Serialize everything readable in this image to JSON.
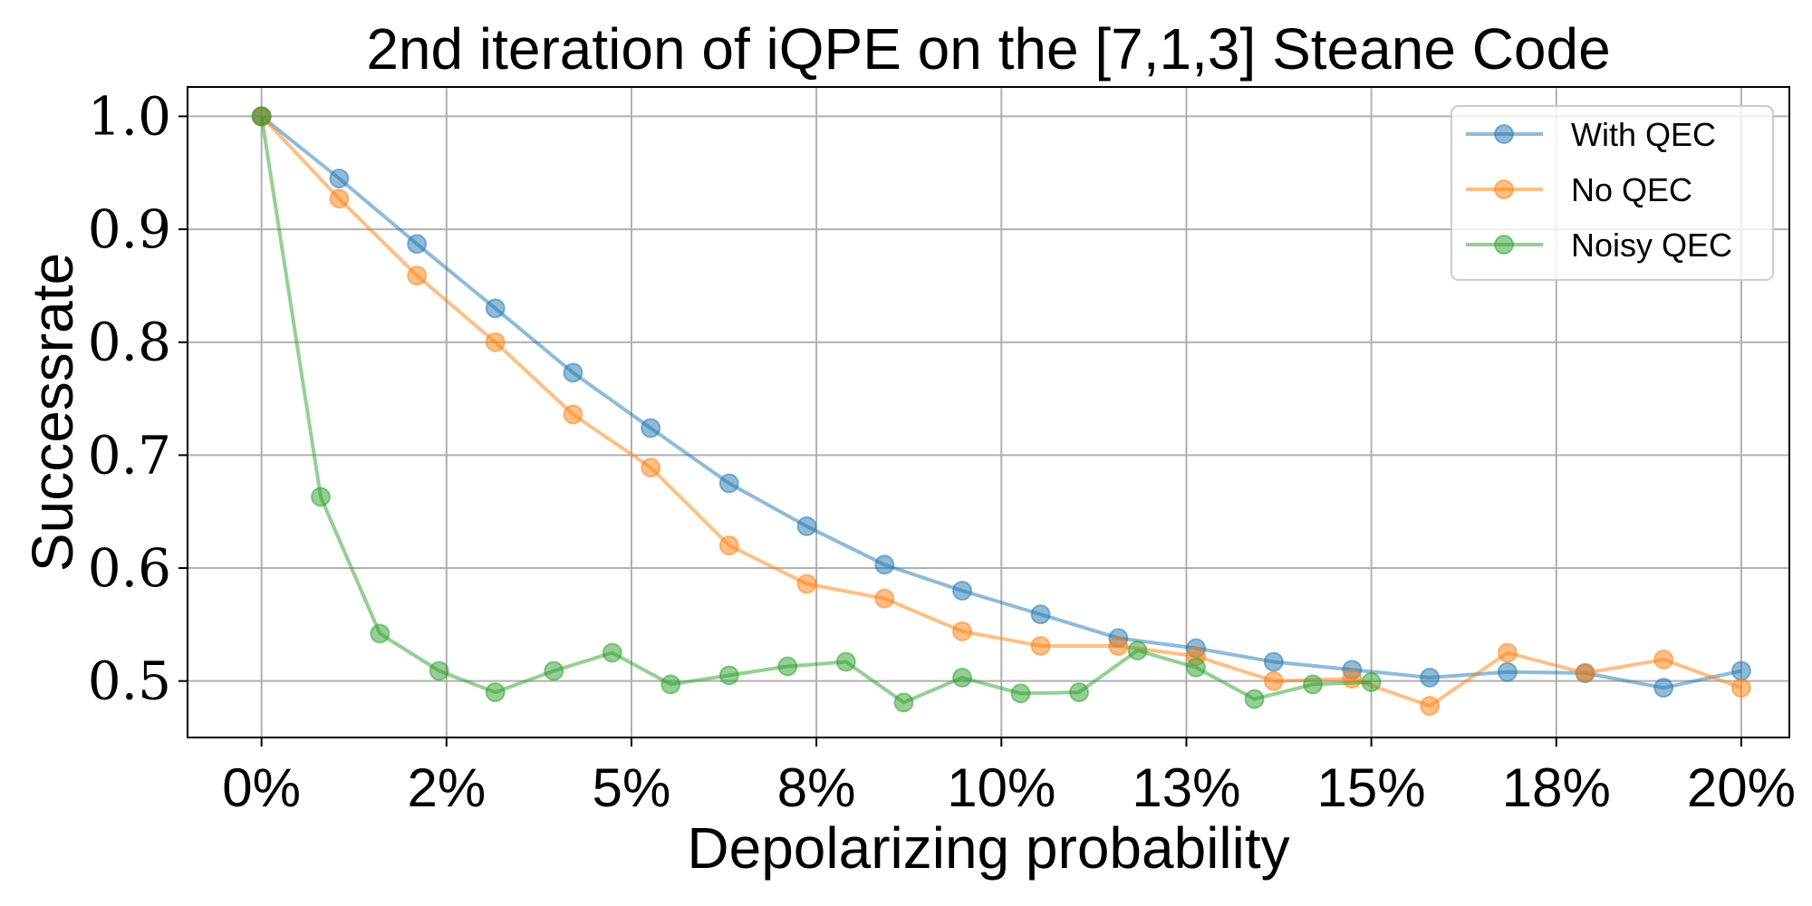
{
  "chart_data": {
    "type": "line",
    "title": "2nd iteration of iQPE on the [7,1,3] Steane Code",
    "xlabel": "Depolarizing probability",
    "ylabel": "Successrate",
    "xlim": [
      -0.01,
      0.2065
    ],
    "ylim": [
      0.45,
      1.026
    ],
    "xticks": [
      0,
      0.025,
      0.05,
      0.075,
      0.1,
      0.125,
      0.15,
      0.175,
      0.2
    ],
    "xtick_labels": [
      "0%",
      "2%",
      "5%",
      "8%",
      "10%",
      "13%",
      "15%",
      "18%",
      "20%"
    ],
    "yticks": [
      0.5,
      0.6,
      0.7,
      0.8,
      0.9,
      1.0
    ],
    "ytick_labels": [
      "0.5",
      "0.6",
      "0.7",
      "0.8",
      "0.9",
      "1.0"
    ],
    "grid": true,
    "legend_position": "top-right",
    "series": [
      {
        "name": "With QEC",
        "color": "#1f77b4",
        "x": [
          0,
          0.0105,
          0.021,
          0.0316,
          0.0421,
          0.0526,
          0.0632,
          0.0737,
          0.0842,
          0.0947,
          0.1053,
          0.1158,
          0.1263,
          0.1368,
          0.1474,
          0.1579,
          0.1684,
          0.1789,
          0.1895,
          0.2
        ],
        "y": [
          1.0,
          0.945,
          0.887,
          0.83,
          0.773,
          0.724,
          0.675,
          0.637,
          0.603,
          0.58,
          0.559,
          0.538,
          0.529,
          0.517,
          0.51,
          0.503,
          0.508,
          0.507,
          0.494,
          0.509
        ]
      },
      {
        "name": "No QEC",
        "color": "#ff7f0e",
        "x": [
          0,
          0.0105,
          0.021,
          0.0316,
          0.0421,
          0.0526,
          0.0632,
          0.0737,
          0.0842,
          0.0947,
          0.1053,
          0.1158,
          0.1263,
          0.1368,
          0.1474,
          0.1579,
          0.1684,
          0.1789,
          0.1895,
          0.2
        ],
        "y": [
          1.0,
          0.927,
          0.859,
          0.8,
          0.736,
          0.689,
          0.62,
          0.586,
          0.573,
          0.544,
          0.531,
          0.531,
          0.522,
          0.5,
          0.502,
          0.478,
          0.525,
          0.507,
          0.519,
          0.494
        ]
      },
      {
        "name": "Noisy QEC",
        "color": "#2ca02c",
        "x": [
          0,
          0.008,
          0.016,
          0.024,
          0.0316,
          0.0395,
          0.0474,
          0.0553,
          0.0632,
          0.0711,
          0.079,
          0.0868,
          0.0947,
          0.1026,
          0.1105,
          0.1184,
          0.1263,
          0.1342,
          0.1421,
          0.15
        ],
        "y": [
          1.0,
          0.663,
          0.542,
          0.509,
          0.49,
          0.509,
          0.525,
          0.497,
          0.505,
          0.513,
          0.517,
          0.481,
          0.503,
          0.489,
          0.49,
          0.527,
          0.512,
          0.484,
          0.497,
          0.499
        ]
      }
    ]
  }
}
